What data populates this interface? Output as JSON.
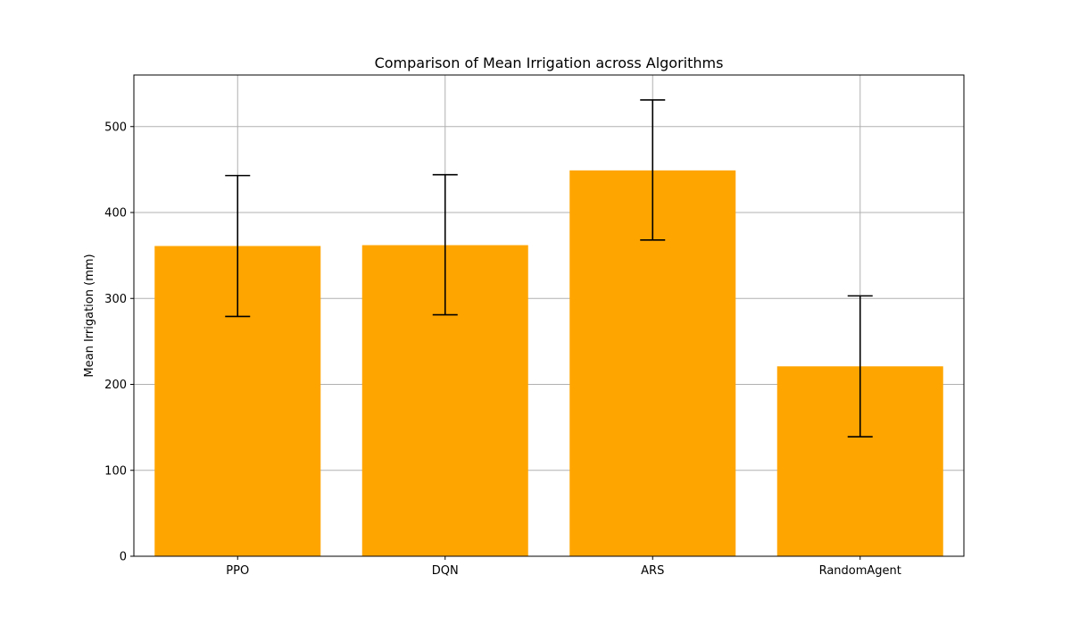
{
  "chart_data": {
    "type": "bar",
    "title": "Comparison of Mean Irrigation across Algorithms",
    "xlabel": "",
    "ylabel": "Mean Irrigation (mm)",
    "categories": [
      "PPO",
      "DQN",
      "ARS",
      "RandomAgent"
    ],
    "values": [
      361,
      362,
      449,
      221
    ],
    "error_bars": [
      {
        "lower": 279,
        "upper": 443
      },
      {
        "lower": 281,
        "upper": 444
      },
      {
        "lower": 368,
        "upper": 531
      },
      {
        "lower": 139,
        "upper": 303
      }
    ],
    "ylim": [
      0,
      560
    ],
    "yticks": [
      0,
      100,
      200,
      300,
      400,
      500
    ],
    "grid": true,
    "bar_color": "#FFA500",
    "error_color": "#000000",
    "grid_color": "#b0b0b0"
  }
}
